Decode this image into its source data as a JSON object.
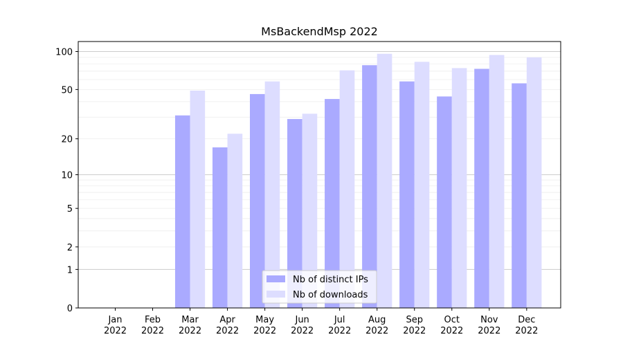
{
  "chart_data": {
    "type": "bar",
    "title": "MsBackendMsp 2022",
    "xlabel": "",
    "ylabel": "",
    "yscale": "symlog",
    "ylim": [
      0,
      120
    ],
    "yticks": [
      0,
      1,
      2,
      5,
      10,
      20,
      50,
      100
    ],
    "grid": true,
    "legend_position": "bottom-center",
    "categories": [
      "Jan\n2022",
      "Feb\n2022",
      "Mar\n2022",
      "Apr\n2022",
      "May\n2022",
      "Jun\n2022",
      "Jul\n2022",
      "Aug\n2022",
      "Sep\n2022",
      "Oct\n2022",
      "Nov\n2022",
      "Dec\n2022"
    ],
    "series": [
      {
        "name": "Nb of distinct IPs",
        "color": "#aaaaff",
        "values": [
          0,
          0,
          31,
          17,
          46,
          29,
          42,
          78,
          58,
          44,
          73,
          56
        ]
      },
      {
        "name": "Nb of downloads",
        "color": "#ddddff",
        "values": [
          0,
          0,
          49,
          22,
          58,
          32,
          71,
          96,
          83,
          74,
          94,
          90
        ]
      }
    ]
  }
}
